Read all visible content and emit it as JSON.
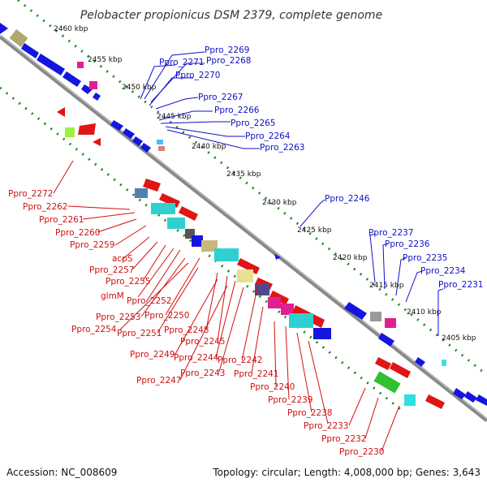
{
  "title": "Pelobacter propionicus DSM 2379, complete genome",
  "footer": {
    "accession": "Accession: NC_008609",
    "summary": "Topology: circular; Length: 4,008,000 bp; Genes: 3,643"
  },
  "colors": {
    "forward_label": "#1010c8",
    "reverse_label": "#d01010",
    "backbone": "#888888",
    "tick_dots": "#1a8a1a"
  },
  "ticks": [
    "2460 kbp",
    "2455 kbp",
    "2450 kbp",
    "2445 kbp",
    "2440 kbp",
    "2435 kbp",
    "2430 kbp",
    "2425 kbp",
    "2420 kbp",
    "2415 kbp",
    "2410 kbp",
    "2405 kbp"
  ],
  "forward_labels": [
    "Ppro_2269",
    "Ppro_2271",
    "Ppro_2268",
    "Ppro_2270",
    "Ppro_2267",
    "Ppro_2266",
    "Ppro_2265",
    "Ppro_2264",
    "Ppro_2263",
    "Ppro_2246",
    "Ppro_2237",
    "Ppro_2236",
    "Ppro_2235",
    "Ppro_2234",
    "Ppro_2231"
  ],
  "reverse_labels": [
    "Ppro_2272",
    "Ppro_2262",
    "Ppro_2261",
    "Ppro_2260",
    "Ppro_2259",
    "acpS",
    "Ppro_2257",
    "Ppro_2255",
    "glmM",
    "Ppro_2252",
    "Ppro_2253",
    "Ppro_2250",
    "Ppro_2254",
    "Ppro_2251",
    "Ppro_2248",
    "Ppro_2245",
    "Ppro_2249",
    "Ppro_2244",
    "Ppro_2242",
    "Ppro_2247",
    "Ppro_2243",
    "Ppro_2241",
    "Ppro_2240",
    "Ppro_2239",
    "Ppro_2238",
    "Ppro_2233",
    "Ppro_2232",
    "Ppro_2230"
  ]
}
